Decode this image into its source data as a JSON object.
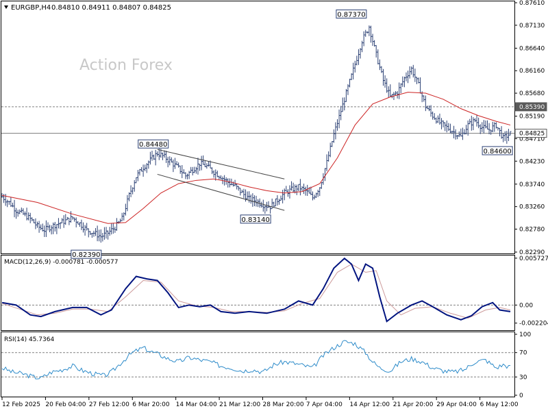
{
  "header": {
    "symbol": "EURGBP,H4",
    "ohlc": "0.84810 0.84911 0.84807 0.84825",
    "watermark": "Action Forex"
  },
  "chart_data": [
    {
      "type": "candlestick",
      "name": "price",
      "ylim": [
        0.8229,
        0.8761
      ],
      "y_ticks": [
        "0.87610",
        "0.87130",
        "0.86640",
        "0.86160",
        "0.85680",
        "0.85190",
        "0.84710",
        "0.84230",
        "0.83740",
        "0.83260",
        "0.82780",
        "0.82290"
      ],
      "y_tick_values": [
        0.8761,
        0.8713,
        0.8664,
        0.8616,
        0.8568,
        0.8519,
        0.8471,
        0.8423,
        0.8374,
        0.8326,
        0.8278,
        0.8229
      ],
      "x_ticks": [
        "12 Feb 2025",
        "20 Feb 04:00",
        "27 Feb 12:00",
        "6 Mar 20:00",
        "14 Mar 04:00",
        "21 Mar 12:00",
        "28 Mar 20:00",
        "7 Apr 04:00",
        "14 Apr 12:00",
        "21 Apr 20:00",
        "29 Apr 04:00",
        "6 May 12:00"
      ],
      "close_path": [
        [
          0,
          0.8347
        ],
        [
          4,
          0.8335
        ],
        [
          8,
          0.8318
        ],
        [
          12,
          0.831
        ],
        [
          16,
          0.83
        ],
        [
          20,
          0.8284
        ],
        [
          24,
          0.8276
        ],
        [
          28,
          0.8284
        ],
        [
          32,
          0.829
        ],
        [
          36,
          0.8296
        ],
        [
          40,
          0.8302
        ],
        [
          44,
          0.829
        ],
        [
          48,
          0.8276
        ],
        [
          52,
          0.827
        ],
        [
          56,
          0.8262
        ],
        [
          60,
          0.827
        ],
        [
          64,
          0.8282
        ],
        [
          68,
          0.83
        ],
        [
          72,
          0.835
        ],
        [
          76,
          0.839
        ],
        [
          80,
          0.841
        ],
        [
          84,
          0.8425
        ],
        [
          88,
          0.844
        ],
        [
          92,
          0.8432
        ],
        [
          96,
          0.842
        ],
        [
          100,
          0.8408
        ],
        [
          104,
          0.8392
        ],
        [
          108,
          0.8405
        ],
        [
          112,
          0.8418
        ],
        [
          116,
          0.8412
        ],
        [
          120,
          0.84
        ],
        [
          124,
          0.839
        ],
        [
          128,
          0.8378
        ],
        [
          132,
          0.837
        ],
        [
          136,
          0.8355
        ],
        [
          140,
          0.8342
        ],
        [
          144,
          0.8338
        ],
        [
          148,
          0.833
        ],
        [
          152,
          0.8326
        ],
        [
          156,
          0.834
        ],
        [
          160,
          0.8355
        ],
        [
          164,
          0.8362
        ],
        [
          168,
          0.8368
        ],
        [
          172,
          0.836
        ],
        [
          176,
          0.8345
        ],
        [
          180,
          0.8368
        ],
        [
          184,
          0.842
        ],
        [
          188,
          0.848
        ],
        [
          192,
          0.853
        ],
        [
          196,
          0.858
        ],
        [
          200,
          0.863
        ],
        [
          204,
          0.868
        ],
        [
          208,
          0.871
        ],
        [
          212,
          0.865
        ],
        [
          216,
          0.8595
        ],
        [
          220,
          0.856
        ],
        [
          224,
          0.857
        ],
        [
          228,
          0.86
        ],
        [
          232,
          0.862
        ],
        [
          236,
          0.8585
        ],
        [
          240,
          0.854
        ],
        [
          244,
          0.852
        ],
        [
          248,
          0.8505
        ],
        [
          252,
          0.8495
        ],
        [
          256,
          0.8485
        ],
        [
          260,
          0.8475
        ],
        [
          264,
          0.85
        ],
        [
          268,
          0.851
        ],
        [
          272,
          0.8495
        ],
        [
          276,
          0.849
        ],
        [
          280,
          0.85
        ],
        [
          284,
          0.8472
        ],
        [
          288,
          0.8482
        ]
      ],
      "ma_path": [
        [
          0,
          0.835
        ],
        [
          20,
          0.8335
        ],
        [
          40,
          0.831
        ],
        [
          60,
          0.829
        ],
        [
          70,
          0.8292
        ],
        [
          80,
          0.8322
        ],
        [
          90,
          0.8355
        ],
        [
          100,
          0.8375
        ],
        [
          110,
          0.8382
        ],
        [
          120,
          0.8385
        ],
        [
          130,
          0.8378
        ],
        [
          140,
          0.8368
        ],
        [
          150,
          0.836
        ],
        [
          160,
          0.8355
        ],
        [
          170,
          0.8358
        ],
        [
          180,
          0.8375
        ],
        [
          190,
          0.843
        ],
        [
          200,
          0.85
        ],
        [
          210,
          0.8545
        ],
        [
          220,
          0.856
        ],
        [
          230,
          0.857
        ],
        [
          240,
          0.8568
        ],
        [
          250,
          0.8555
        ],
        [
          260,
          0.8535
        ],
        [
          270,
          0.852
        ],
        [
          280,
          0.8508
        ],
        [
          288,
          0.85
        ]
      ],
      "channel": {
        "upper": [
          [
            88,
            0.8448
          ],
          [
            160,
            0.8385
          ]
        ],
        "lower": [
          [
            88,
            0.8395
          ],
          [
            160,
            0.8318
          ]
        ]
      },
      "hlines": [
        {
          "value": 0.8539,
          "style": "dashed",
          "label": "0.85390"
        },
        {
          "value": 0.84825,
          "style": "solid",
          "label": "0.84825"
        }
      ],
      "annotations": [
        {
          "text": "0.84480",
          "x": 88,
          "y": 0.8448
        },
        {
          "text": "0.82390",
          "x": 50,
          "y": 0.8239
        },
        {
          "text": "0.83140",
          "x": 146,
          "y": 0.8314
        },
        {
          "text": "0.87370",
          "x": 208,
          "y": 0.8737
        },
        {
          "text": "0.84600",
          "x": 283,
          "y": 0.846
        }
      ]
    },
    {
      "type": "line",
      "name": "macd",
      "label": "MACD(12,26,9) -0.000781 -0.000577",
      "ylim": [
        -0.0029,
        0.0058
      ],
      "y_ticks": [
        "0.005727",
        "0.00",
        "-0.002204"
      ],
      "y_tick_values": [
        0.005727,
        0.0,
        -0.002204
      ],
      "macd_path": [
        [
          0,
          0.0003
        ],
        [
          8,
          0.0
        ],
        [
          16,
          -0.0012
        ],
        [
          22,
          -0.0014
        ],
        [
          30,
          -0.0008
        ],
        [
          40,
          -0.0003
        ],
        [
          48,
          -0.0003
        ],
        [
          56,
          -0.0012
        ],
        [
          62,
          -0.0006
        ],
        [
          70,
          0.002
        ],
        [
          76,
          0.0035
        ],
        [
          82,
          0.0032
        ],
        [
          88,
          0.003
        ],
        [
          94,
          0.0015
        ],
        [
          100,
          -0.0003
        ],
        [
          106,
          0.0
        ],
        [
          112,
          -0.0002
        ],
        [
          118,
          0.0
        ],
        [
          124,
          -0.0008
        ],
        [
          132,
          -0.001
        ],
        [
          140,
          -0.0008
        ],
        [
          150,
          -0.001
        ],
        [
          160,
          -0.0005
        ],
        [
          168,
          0.0005
        ],
        [
          176,
          0.0
        ],
        [
          182,
          0.002
        ],
        [
          188,
          0.0045
        ],
        [
          194,
          0.0057
        ],
        [
          198,
          0.005
        ],
        [
          202,
          0.003
        ],
        [
          206,
          0.005
        ],
        [
          210,
          0.0045
        ],
        [
          214,
          0.001
        ],
        [
          218,
          -0.002
        ],
        [
          224,
          -0.001
        ],
        [
          232,
          0.0
        ],
        [
          238,
          0.0005
        ],
        [
          244,
          -0.0002
        ],
        [
          252,
          -0.0012
        ],
        [
          260,
          -0.0018
        ],
        [
          266,
          -0.0013
        ],
        [
          272,
          -0.0002
        ],
        [
          278,
          0.0003
        ],
        [
          282,
          -0.0006
        ],
        [
          288,
          -0.0008
        ]
      ],
      "signal_path": [
        [
          0,
          0.0002
        ],
        [
          10,
          -0.0005
        ],
        [
          20,
          -0.0012
        ],
        [
          30,
          -0.001
        ],
        [
          40,
          -0.0005
        ],
        [
          50,
          -0.0005
        ],
        [
          60,
          -0.0008
        ],
        [
          70,
          0.001
        ],
        [
          80,
          0.003
        ],
        [
          90,
          0.0028
        ],
        [
          100,
          0.0005
        ],
        [
          110,
          -0.0001
        ],
        [
          120,
          -0.0003
        ],
        [
          130,
          -0.0008
        ],
        [
          140,
          -0.0008
        ],
        [
          150,
          -0.0009
        ],
        [
          160,
          -0.0007
        ],
        [
          170,
          0.0002
        ],
        [
          180,
          0.0008
        ],
        [
          190,
          0.004
        ],
        [
          198,
          0.005
        ],
        [
          206,
          0.004
        ],
        [
          212,
          0.0042
        ],
        [
          218,
          0.0005
        ],
        [
          226,
          -0.0012
        ],
        [
          234,
          -0.0004
        ],
        [
          244,
          -0.0002
        ],
        [
          254,
          -0.001
        ],
        [
          264,
          -0.0016
        ],
        [
          274,
          -0.0006
        ],
        [
          282,
          -0.0003
        ],
        [
          288,
          -0.0006
        ]
      ],
      "zero_line": 0.0
    },
    {
      "type": "line",
      "name": "rsi",
      "label": "RSI(14) 45.7364",
      "ylim": [
        0,
        100
      ],
      "y_ticks": [
        "100",
        "70",
        "30",
        "0"
      ],
      "y_tick_values": [
        100,
        70,
        30,
        0
      ],
      "levels": [
        70,
        30
      ],
      "rsi_path": [
        [
          0,
          45
        ],
        [
          6,
          38
        ],
        [
          12,
          35
        ],
        [
          18,
          30
        ],
        [
          22,
          28
        ],
        [
          28,
          38
        ],
        [
          34,
          42
        ],
        [
          40,
          48
        ],
        [
          46,
          40
        ],
        [
          52,
          35
        ],
        [
          58,
          32
        ],
        [
          62,
          38
        ],
        [
          68,
          55
        ],
        [
          74,
          70
        ],
        [
          80,
          78
        ],
        [
          84,
          72
        ],
        [
          88,
          68
        ],
        [
          94,
          60
        ],
        [
          100,
          55
        ],
        [
          106,
          62
        ],
        [
          112,
          58
        ],
        [
          118,
          55
        ],
        [
          124,
          48
        ],
        [
          130,
          45
        ],
        [
          136,
          40
        ],
        [
          142,
          42
        ],
        [
          148,
          38
        ],
        [
          154,
          50
        ],
        [
          160,
          55
        ],
        [
          166,
          52
        ],
        [
          172,
          48
        ],
        [
          176,
          45
        ],
        [
          182,
          65
        ],
        [
          188,
          78
        ],
        [
          194,
          88
        ],
        [
          200,
          85
        ],
        [
          206,
          70
        ],
        [
          210,
          55
        ],
        [
          214,
          45
        ],
        [
          220,
          40
        ],
        [
          226,
          55
        ],
        [
          232,
          60
        ],
        [
          238,
          55
        ],
        [
          244,
          45
        ],
        [
          250,
          40
        ],
        [
          256,
          38
        ],
        [
          262,
          42
        ],
        [
          268,
          55
        ],
        [
          274,
          58
        ],
        [
          280,
          45
        ],
        [
          284,
          50
        ],
        [
          288,
          46
        ]
      ]
    }
  ],
  "colors": {
    "background": "#ffffff",
    "border": "#000000",
    "candle": "#2a3f73",
    "ma": "#cc2222",
    "channel": "#444444",
    "macd": "#00137f",
    "signal": "#cc9999",
    "rsi": "#2b8ac9",
    "grid_dash": "#808080"
  }
}
